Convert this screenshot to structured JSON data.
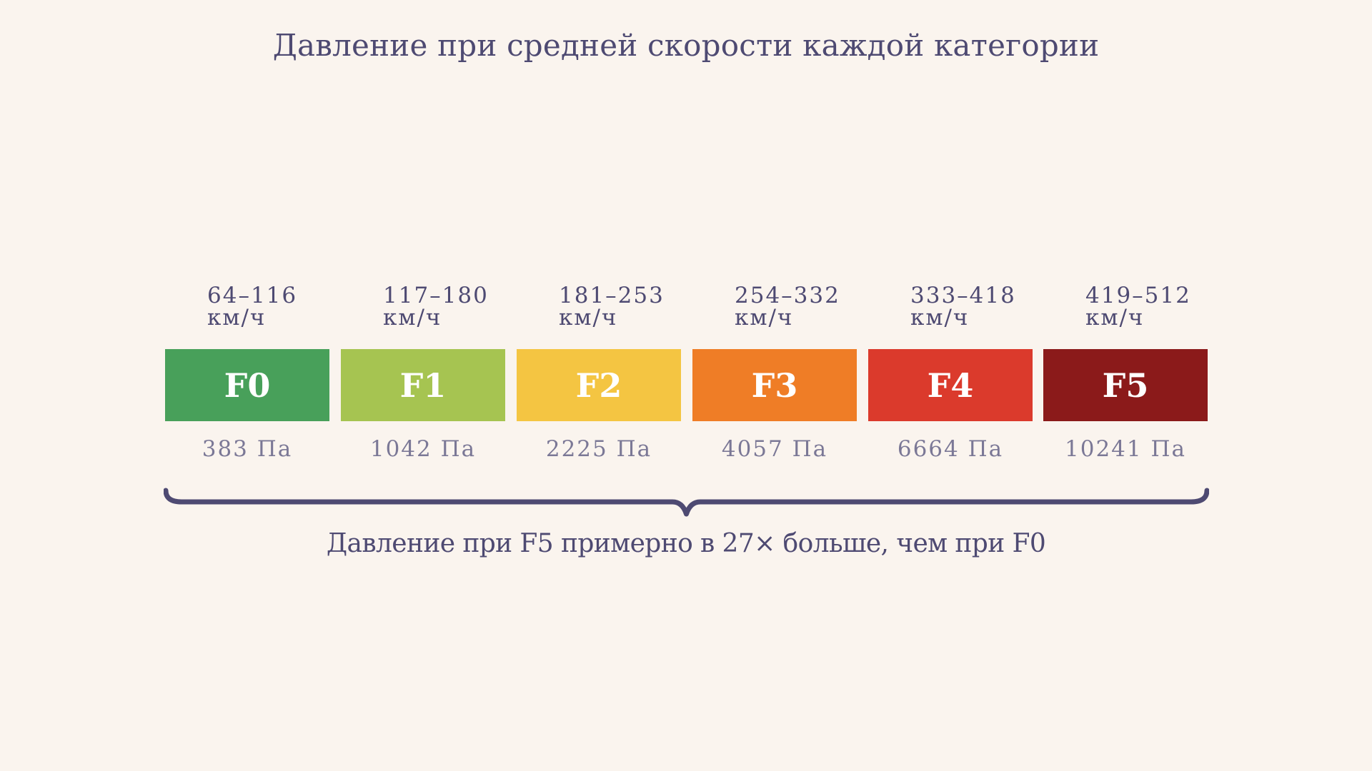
{
  "title": "Давление при средней скорости каждой категории",
  "categories": [
    {
      "label": "F0",
      "speed_range": "64–116",
      "speed_unit": "км/ч",
      "pressure": "383 Па",
      "color": "#48a05a"
    },
    {
      "label": "F1",
      "speed_range": "117–180",
      "speed_unit": "км/ч",
      "pressure": "1042 Па",
      "color": "#a6c451"
    },
    {
      "label": "F2",
      "speed_range": "181–253",
      "speed_unit": "км/ч",
      "pressure": "2225 Па",
      "color": "#f4c542"
    },
    {
      "label": "F3",
      "speed_range": "254–332",
      "speed_unit": "км/ч",
      "pressure": "4057 Па",
      "color": "#ef7d26"
    },
    {
      "label": "F4",
      "speed_range": "333–418",
      "speed_unit": "км/ч",
      "pressure": "6664 Па",
      "color": "#db3a2c"
    },
    {
      "label": "F5",
      "speed_range": "419–512",
      "speed_unit": "км/ч",
      "pressure": "10241 Па",
      "color": "#8b1a1a"
    }
  ],
  "caption": "Давление при F5 примерно в 27× больше, чем при F0",
  "colors": {
    "background": "#faf4ee",
    "text": "#4e4a72",
    "muted_text": "#7b7896",
    "brace": "#4e4a72"
  }
}
